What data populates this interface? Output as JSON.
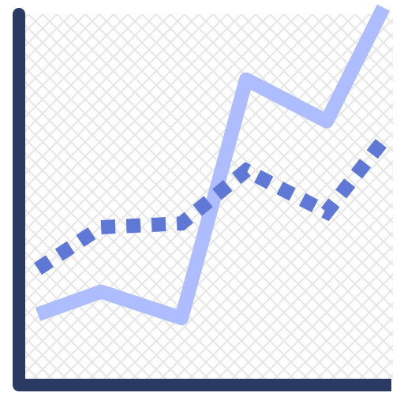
{
  "icon": {
    "name": "line-chart-icon",
    "description_visible": false
  },
  "colors": {
    "background": "#ffffff",
    "pattern": "#e6e6e6",
    "axis": "#2b3a63",
    "solid_series": "#aebdff",
    "dotted_series": "#5f78d6"
  },
  "chart_data": {
    "type": "line",
    "title": "",
    "xlabel": "",
    "ylabel": "",
    "grid": false,
    "legend": "none",
    "x": [
      0,
      1,
      2,
      3,
      4,
      5
    ],
    "xlim": [
      0,
      5
    ],
    "ylim": [
      0,
      10
    ],
    "series": [
      {
        "style": "solid",
        "values": [
          1.7,
          2.3,
          1.6,
          7.9,
          6.8,
          9.8
        ]
      },
      {
        "style": "dotted",
        "values": [
          2.9,
          4.0,
          4.1,
          5.5,
          4.4,
          6.3
        ]
      }
    ]
  }
}
